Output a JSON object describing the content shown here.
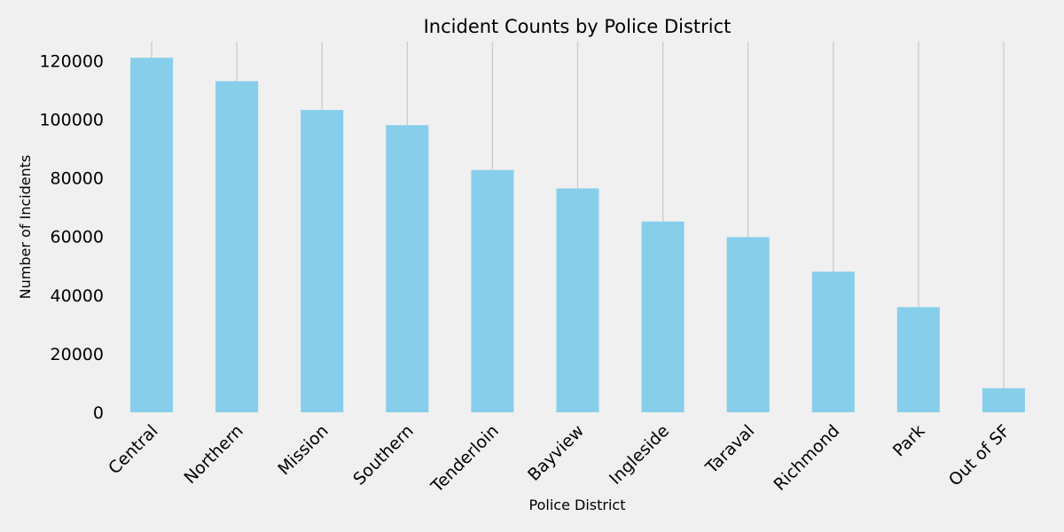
{
  "chart_data": {
    "type": "bar",
    "title": "Incident Counts by Police District",
    "xlabel": "Police District",
    "ylabel": "Number of Incidents",
    "categories": [
      "Central",
      "Northern",
      "Mission",
      "Southern",
      "Tenderloin",
      "Bayview",
      "Ingleside",
      "Taraval",
      "Richmond",
      "Park",
      "Out of SF"
    ],
    "values": [
      121000,
      113000,
      103200,
      98000,
      82700,
      76400,
      65100,
      59800,
      48000,
      35900,
      8200
    ],
    "yticks": [
      0,
      20000,
      40000,
      60000,
      80000,
      100000,
      120000
    ],
    "ylim": [
      0,
      126500
    ],
    "grid": "vertical",
    "colors": {
      "bar": "#87ceeb",
      "background": "#f0f0f0",
      "grid": "#cbcbcb"
    }
  }
}
